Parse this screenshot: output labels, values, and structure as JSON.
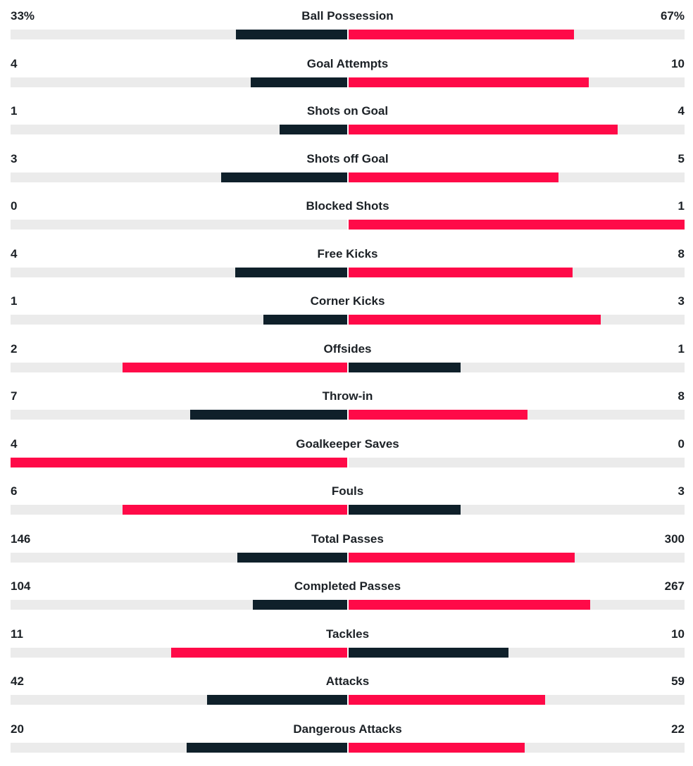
{
  "colors": {
    "leader": "#ff0a48",
    "trailer": "#0f202a",
    "track": "#ebebeb",
    "text": "#1c2126"
  },
  "stats": [
    {
      "label": "Ball Possession",
      "home": "33%",
      "away": "67%"
    },
    {
      "label": "Goal Attempts",
      "home": "4",
      "away": "10"
    },
    {
      "label": "Shots on Goal",
      "home": "1",
      "away": "4"
    },
    {
      "label": "Shots off Goal",
      "home": "3",
      "away": "5"
    },
    {
      "label": "Blocked Shots",
      "home": "0",
      "away": "1"
    },
    {
      "label": "Free Kicks",
      "home": "4",
      "away": "8"
    },
    {
      "label": "Corner Kicks",
      "home": "1",
      "away": "3"
    },
    {
      "label": "Offsides",
      "home": "2",
      "away": "1"
    },
    {
      "label": "Throw-in",
      "home": "7",
      "away": "8"
    },
    {
      "label": "Goalkeeper Saves",
      "home": "4",
      "away": "0"
    },
    {
      "label": "Fouls",
      "home": "6",
      "away": "3"
    },
    {
      "label": "Total Passes",
      "home": "146",
      "away": "300"
    },
    {
      "label": "Completed Passes",
      "home": "104",
      "away": "267"
    },
    {
      "label": "Tackles",
      "home": "11",
      "away": "10"
    },
    {
      "label": "Attacks",
      "home": "42",
      "away": "59"
    },
    {
      "label": "Dangerous Attacks",
      "home": "20",
      "away": "22"
    }
  ]
}
